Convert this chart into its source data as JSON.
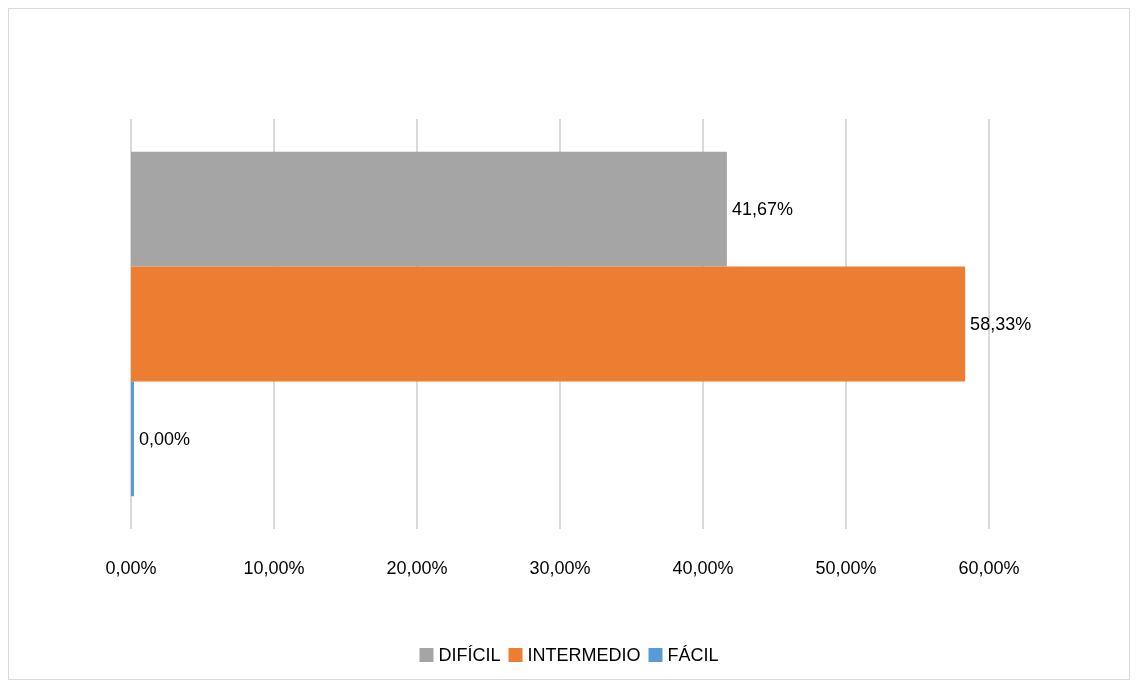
{
  "chart_data": {
    "type": "bar",
    "orientation": "horizontal",
    "categories": [
      null
    ],
    "series": [
      {
        "name": "DIFÍCIL",
        "color": "#a5a5a5",
        "values": [
          41.67
        ],
        "value_labels": [
          "41,67%"
        ]
      },
      {
        "name": "INTERMEDIO",
        "color": "#ed7d31",
        "values": [
          58.33
        ],
        "value_labels": [
          "58,33%"
        ]
      },
      {
        "name": "FÁCIL",
        "color": "#5b9bd5",
        "values": [
          0
        ],
        "value_labels": [
          "0,00%"
        ]
      }
    ],
    "xlim": [
      0,
      60
    ],
    "xticks": [
      {
        "value": 0,
        "label": "0,00%"
      },
      {
        "value": 10,
        "label": "10,00%"
      },
      {
        "value": 20,
        "label": "20,00%"
      },
      {
        "value": 30,
        "label": "30,00%"
      },
      {
        "value": 40,
        "label": "40,00%"
      },
      {
        "value": 50,
        "label": "50,00%"
      },
      {
        "value": 60,
        "label": "60,00%"
      }
    ],
    "grid": "x",
    "legend": "bottom"
  }
}
